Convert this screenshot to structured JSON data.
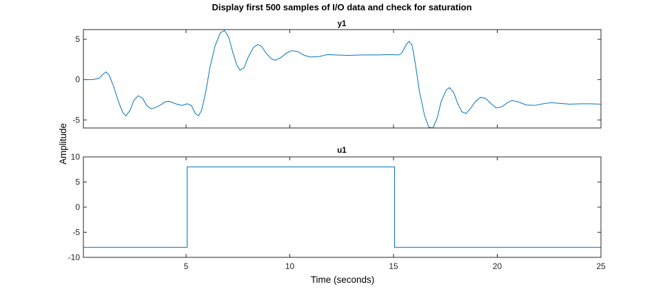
{
  "chart_data": {
    "type": "line",
    "title": "Display first 500 samples of I/O data and check for saturation",
    "xlabel": "Time (seconds)",
    "ylabel": "Amplitude",
    "line_color": "#0072BD",
    "xlim": [
      0.05,
      25
    ],
    "xticks": [
      5,
      10,
      15,
      20,
      25
    ],
    "xtick_labels": [
      "5",
      "10",
      "15",
      "20",
      "25"
    ],
    "subplots": [
      {
        "name": "y1",
        "title": "y1",
        "ylim": [
          -6,
          6.2
        ],
        "yticks": [
          5,
          0,
          -5
        ],
        "ytick_labels": [
          "5",
          "0",
          "-5"
        ],
        "points": [
          [
            0.05,
            0.0
          ],
          [
            0.5,
            0.0
          ],
          [
            0.8,
            0.15
          ],
          [
            1.0,
            0.7
          ],
          [
            1.15,
            0.95
          ],
          [
            1.3,
            0.5
          ],
          [
            1.5,
            -0.8
          ],
          [
            1.75,
            -2.8
          ],
          [
            1.95,
            -4.1
          ],
          [
            2.1,
            -4.5
          ],
          [
            2.3,
            -3.8
          ],
          [
            2.5,
            -2.5
          ],
          [
            2.7,
            -2.0
          ],
          [
            2.9,
            -2.3
          ],
          [
            3.1,
            -3.2
          ],
          [
            3.3,
            -3.6
          ],
          [
            3.5,
            -3.5
          ],
          [
            3.8,
            -3.1
          ],
          [
            4.0,
            -2.75
          ],
          [
            4.2,
            -2.7
          ],
          [
            4.5,
            -3.0
          ],
          [
            4.8,
            -3.2
          ],
          [
            5.05,
            -3.0
          ],
          [
            5.25,
            -3.2
          ],
          [
            5.45,
            -4.2
          ],
          [
            5.6,
            -4.5
          ],
          [
            5.75,
            -3.8
          ],
          [
            5.95,
            -1.5
          ],
          [
            6.15,
            1.5
          ],
          [
            6.4,
            4.2
          ],
          [
            6.65,
            5.8
          ],
          [
            6.85,
            6.1
          ],
          [
            7.05,
            5.3
          ],
          [
            7.25,
            3.4
          ],
          [
            7.45,
            1.8
          ],
          [
            7.6,
            1.15
          ],
          [
            7.8,
            1.5
          ],
          [
            8.0,
            2.8
          ],
          [
            8.25,
            4.0
          ],
          [
            8.45,
            4.35
          ],
          [
            8.65,
            4.1
          ],
          [
            8.85,
            3.3
          ],
          [
            9.1,
            2.6
          ],
          [
            9.3,
            2.4
          ],
          [
            9.55,
            2.7
          ],
          [
            9.85,
            3.3
          ],
          [
            10.1,
            3.6
          ],
          [
            10.4,
            3.45
          ],
          [
            10.7,
            3.0
          ],
          [
            11.0,
            2.8
          ],
          [
            11.4,
            2.85
          ],
          [
            11.8,
            3.1
          ],
          [
            12.2,
            3.05
          ],
          [
            12.8,
            3.0
          ],
          [
            13.5,
            3.05
          ],
          [
            14.2,
            3.05
          ],
          [
            14.9,
            3.1
          ],
          [
            15.25,
            3.05
          ],
          [
            15.4,
            3.3
          ],
          [
            15.6,
            4.3
          ],
          [
            15.75,
            4.75
          ],
          [
            15.9,
            4.2
          ],
          [
            16.05,
            2.0
          ],
          [
            16.25,
            -1.5
          ],
          [
            16.5,
            -4.5
          ],
          [
            16.7,
            -5.9
          ],
          [
            16.9,
            -6.0
          ],
          [
            17.1,
            -4.8
          ],
          [
            17.3,
            -2.7
          ],
          [
            17.55,
            -1.25
          ],
          [
            17.7,
            -1.0
          ],
          [
            17.9,
            -1.6
          ],
          [
            18.1,
            -3.0
          ],
          [
            18.3,
            -4.0
          ],
          [
            18.5,
            -4.2
          ],
          [
            18.7,
            -3.6
          ],
          [
            18.95,
            -2.7
          ],
          [
            19.2,
            -2.2
          ],
          [
            19.45,
            -2.35
          ],
          [
            19.75,
            -3.1
          ],
          [
            19.95,
            -3.5
          ],
          [
            20.2,
            -3.4
          ],
          [
            20.5,
            -2.85
          ],
          [
            20.7,
            -2.6
          ],
          [
            21.0,
            -2.75
          ],
          [
            21.4,
            -3.15
          ],
          [
            21.8,
            -3.2
          ],
          [
            22.2,
            -3.0
          ],
          [
            22.6,
            -2.85
          ],
          [
            23.0,
            -2.95
          ],
          [
            23.5,
            -3.05
          ],
          [
            24.0,
            -3.0
          ],
          [
            24.5,
            -3.0
          ],
          [
            25.0,
            -3.05
          ]
        ]
      },
      {
        "name": "u1",
        "title": "u1",
        "ylim": [
          -10,
          10
        ],
        "yticks": [
          10,
          5,
          0,
          -5,
          -10
        ],
        "ytick_labels": [
          "10",
          "5",
          "0",
          "-5",
          "-10"
        ],
        "points": [
          [
            0.05,
            -8
          ],
          [
            5.05,
            -8
          ],
          [
            5.05,
            8
          ],
          [
            15.05,
            8
          ],
          [
            15.05,
            -8
          ],
          [
            25.0,
            -8
          ]
        ]
      }
    ]
  }
}
